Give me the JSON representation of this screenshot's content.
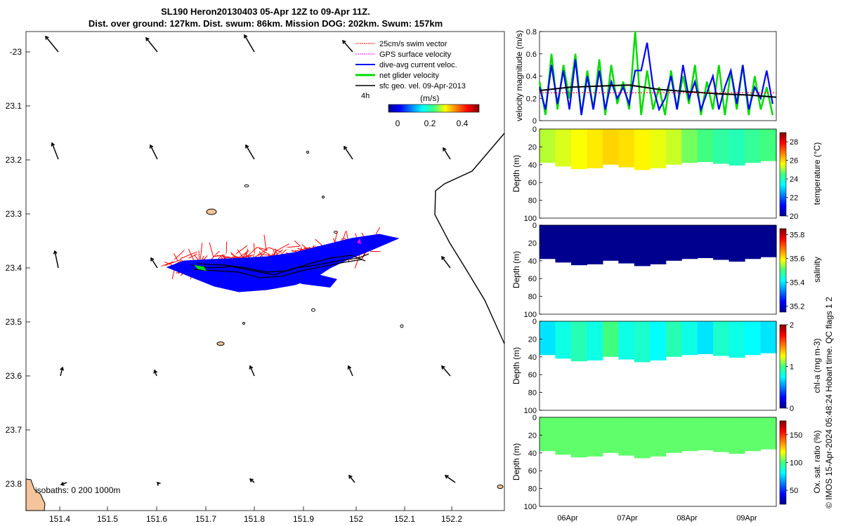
{
  "header": {
    "title_line1": "SL190 Heron20130403 05-Apr 12Z to 09-Apr 11Z.",
    "title_line2": "Dist. over ground: 127km. Dist. swum: 86km. Mission DOG: 202km. Swum: 157km"
  },
  "colors": {
    "swim": "#ff0000",
    "gps": "#ff00ff",
    "current": "#0000ff",
    "net": "#00dd00",
    "geo": "#000000",
    "land": "#f4c49a"
  },
  "map": {
    "x_ticks": [
      "151.4",
      "151.5",
      "151.6",
      "151.7",
      "151.8",
      "151.9",
      "152",
      "152.1",
      "152.2"
    ],
    "y_ticks": [
      "-23",
      "23.1",
      "23.2",
      "23.3",
      "23.4",
      "23.5",
      "23.6",
      "23.7",
      "23.8"
    ],
    "isobaths_label": "isobaths: 0   200  1000m",
    "legend": {
      "items": [
        {
          "label": "25cm/s swim vector",
          "color": "#ff0000",
          "style": "dash"
        },
        {
          "label": "GPS surface velocity",
          "color": "#ff00ff",
          "style": "dash"
        },
        {
          "label": "dive-avg current veloc.",
          "color": "#0000ff",
          "style": "solid"
        },
        {
          "label": "net glider velocity",
          "color": "#00dd00",
          "style": "solid"
        },
        {
          "label": "sfc geo. vel. 09-Apr-2013",
          "color": "#000000",
          "style": "solid"
        }
      ],
      "scale_label": "4h",
      "colorbar_title": "(m/s)",
      "colorbar_ticks": [
        "0",
        "0.2",
        "0.4"
      ]
    }
  },
  "chart_data": [
    {
      "type": "line",
      "title": "",
      "xlabel": "",
      "ylabel": "velocity magnitude (m/s)",
      "ylim": [
        0,
        0.8
      ],
      "y_ticks": [
        "0",
        "0.2",
        "0.4",
        "0.6",
        "0.8"
      ],
      "x_range_days": [
        5.5,
        9.46
      ],
      "series": [
        {
          "name": "net glider velocity",
          "color": "#00dd00",
          "x": [
            5.5,
            5.6,
            5.7,
            5.8,
            5.9,
            6.0,
            6.1,
            6.2,
            6.3,
            6.4,
            6.5,
            6.6,
            6.7,
            6.8,
            6.9,
            7.0,
            7.1,
            7.2,
            7.3,
            7.4,
            7.5,
            7.6,
            7.7,
            7.8,
            7.9,
            8.0,
            8.1,
            8.2,
            8.3,
            8.4,
            8.5,
            8.6,
            8.7,
            8.8,
            8.9,
            9.0,
            9.1,
            9.2,
            9.3,
            9.4
          ],
          "values": [
            0.35,
            0.05,
            0.6,
            0.1,
            0.5,
            0.2,
            0.6,
            0.05,
            0.45,
            0.1,
            0.55,
            0.05,
            0.5,
            0.15,
            0.35,
            0.1,
            0.8,
            0.05,
            0.45,
            0.1,
            0.3,
            0.05,
            0.45,
            0.1,
            0.4,
            0.15,
            0.5,
            0.05,
            0.35,
            0.1,
            0.5,
            0.05,
            0.45,
            0.1,
            0.5,
            0.05,
            0.4,
            0.1,
            0.3,
            0.05
          ]
        },
        {
          "name": "dive-avg current veloc.",
          "color": "#0000ff",
          "x": [
            5.5,
            5.6,
            5.7,
            5.8,
            5.9,
            6.0,
            6.1,
            6.2,
            6.3,
            6.4,
            6.5,
            6.6,
            6.7,
            6.8,
            6.9,
            7.0,
            7.1,
            7.2,
            7.3,
            7.4,
            7.5,
            7.6,
            7.7,
            7.8,
            7.9,
            8.0,
            8.1,
            8.2,
            8.3,
            8.4,
            8.5,
            8.6,
            8.7,
            8.8,
            8.9,
            9.0,
            9.1,
            9.2,
            9.3,
            9.4
          ],
          "values": [
            0.3,
            0.1,
            0.5,
            0.15,
            0.45,
            0.1,
            0.55,
            0.05,
            0.4,
            0.1,
            0.45,
            0.1,
            0.35,
            0.2,
            0.3,
            0.15,
            0.45,
            0.45,
            0.7,
            0.3,
            0.1,
            0.2,
            0.4,
            0.1,
            0.5,
            0.2,
            0.35,
            0.1,
            0.25,
            0.4,
            0.1,
            0.3,
            0.45,
            0.15,
            0.5,
            0.1,
            0.3,
            0.2,
            0.45,
            0.15
          ]
        },
        {
          "name": "sfc geo. vel.",
          "color": "#000000",
          "x": [
            5.5,
            6.0,
            6.5,
            7.0,
            7.5,
            8.0,
            8.5,
            9.0,
            9.46
          ],
          "values": [
            0.27,
            0.3,
            0.31,
            0.32,
            0.28,
            0.26,
            0.24,
            0.23,
            0.21
          ]
        },
        {
          "name": "swim speed",
          "color": "#ff0000",
          "x": [
            5.5,
            9.46
          ],
          "values": [
            0.25,
            0.25
          ]
        }
      ]
    },
    {
      "type": "heatmap",
      "ylabel": "Depth (m)",
      "colorbar_label": "temperature (°C)",
      "ylim": [
        0,
        100
      ],
      "y_ticks": [
        "0",
        "20",
        "40",
        "60",
        "80",
        "100"
      ],
      "colorbar_ticks": [
        "20",
        "22",
        "24",
        "26",
        "28"
      ],
      "cbar_range": [
        20,
        29
      ],
      "x_dates": [
        "06Apr",
        "07Apr",
        "08Apr",
        "09Apr"
      ],
      "max_depth_profile": [
        38,
        42,
        45,
        44,
        40,
        43,
        46,
        44,
        40,
        38,
        37,
        39,
        41,
        38,
        36
      ],
      "segment_values": [
        25.2,
        25.4,
        25.6,
        25.8,
        26.0,
        25.9,
        25.7,
        25.5,
        25.3,
        24.8,
        24.5,
        24.2,
        24.0,
        24.3,
        24.5
      ]
    },
    {
      "type": "heatmap",
      "ylabel": "Depth (m)",
      "colorbar_label": "salinity",
      "ylim": [
        0,
        100
      ],
      "y_ticks": [
        "0",
        "20",
        "40",
        "60",
        "80",
        "100"
      ],
      "colorbar_ticks": [
        "35.2",
        "35.4",
        "35.6",
        "35.8"
      ],
      "cbar_range": [
        35.15,
        35.85
      ],
      "max_depth_profile": [
        38,
        42,
        45,
        44,
        40,
        43,
        46,
        44,
        40,
        38,
        37,
        39,
        41,
        38,
        36
      ],
      "segment_values": [
        35.15,
        35.15,
        35.15,
        35.15,
        35.15,
        35.15,
        35.15,
        35.15,
        35.15,
        35.15,
        35.15,
        35.15,
        35.15,
        35.15,
        35.15
      ]
    },
    {
      "type": "heatmap",
      "ylabel": "Depth (m)",
      "colorbar_label": "chl-a (mg m-3)",
      "ylim": [
        0,
        100
      ],
      "y_ticks": [
        "0",
        "20",
        "40",
        "60",
        "80",
        "100"
      ],
      "colorbar_ticks": [
        "0",
        "1",
        "2"
      ],
      "cbar_range": [
        0,
        2
      ],
      "max_depth_profile": [
        38,
        42,
        45,
        44,
        40,
        43,
        46,
        44,
        40,
        38,
        37,
        39,
        41,
        38,
        36
      ],
      "segment_values": [
        0.7,
        0.8,
        0.9,
        0.8,
        1.0,
        0.8,
        0.85,
        0.75,
        0.9,
        0.8,
        0.7,
        0.85,
        0.8,
        0.75,
        0.7
      ]
    },
    {
      "type": "heatmap",
      "ylabel": "Depth (m)",
      "colorbar_label": "Ox. sat. ratio (%)",
      "ylim": [
        0,
        100
      ],
      "y_ticks": [
        "0",
        "20",
        "40",
        "60",
        "80",
        "100"
      ],
      "colorbar_ticks": [
        "50",
        "100",
        "150"
      ],
      "cbar_range": [
        25,
        175
      ],
      "max_depth_profile": [
        38,
        42,
        45,
        44,
        40,
        43,
        46,
        44,
        40,
        38,
        37,
        39,
        41,
        38,
        36
      ],
      "segment_values": [
        103,
        103,
        103,
        103,
        103,
        103,
        103,
        103,
        103,
        103,
        103,
        103,
        103,
        103,
        103
      ]
    }
  ],
  "footer": {
    "credit": "© IMOS 15-Apr-2024 05:48:24 Hobart time. QC flags 1  2"
  }
}
